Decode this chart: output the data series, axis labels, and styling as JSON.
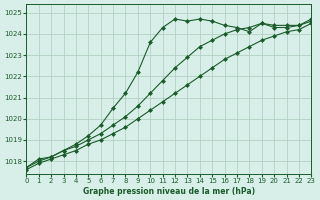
{
  "title": "Graphe pression niveau de la mer (hPa)",
  "background_color": "#d8eee8",
  "grid_color": "#aaccbb",
  "line_color": "#1a5c2a",
  "xlim": [
    0,
    23
  ],
  "ylim": [
    1017.4,
    1025.4
  ],
  "yticks": [
    1018,
    1019,
    1020,
    1021,
    1022,
    1023,
    1024,
    1025
  ],
  "xticks": [
    0,
    1,
    2,
    3,
    4,
    5,
    6,
    7,
    8,
    9,
    10,
    11,
    12,
    13,
    14,
    15,
    16,
    17,
    18,
    19,
    20,
    21,
    22,
    23
  ],
  "series": [
    {
      "x": [
        0,
        1,
        2,
        3,
        4,
        5,
        6,
        7,
        8,
        9,
        10,
        11,
        12,
        13,
        14,
        15,
        16,
        17,
        18,
        19,
        20,
        21,
        22,
        23
      ],
      "y": [
        1017.7,
        1018.1,
        1018.2,
        1018.5,
        1018.8,
        1019.2,
        1019.7,
        1020.5,
        1021.2,
        1022.2,
        1023.6,
        1024.3,
        1024.7,
        1024.6,
        1024.7,
        1024.6,
        1024.4,
        1024.3,
        1024.1,
        1024.5,
        1024.3,
        1024.3,
        1024.4,
        1024.7
      ],
      "marker": "D",
      "linewidth": 0.8,
      "markersize": 2.0,
      "linestyle": "-"
    },
    {
      "x": [
        0,
        1,
        2,
        3,
        4,
        5,
        6,
        7,
        8,
        9,
        10,
        11,
        12,
        13,
        14,
        15,
        16,
        17,
        18,
        19,
        20,
        21,
        22,
        23
      ],
      "y": [
        1017.7,
        1018.0,
        1018.2,
        1018.5,
        1018.7,
        1019.0,
        1019.3,
        1019.7,
        1020.1,
        1020.6,
        1021.2,
        1021.8,
        1022.4,
        1022.9,
        1023.4,
        1023.7,
        1024.0,
        1024.2,
        1024.3,
        1024.5,
        1024.4,
        1024.4,
        1024.4,
        1024.6
      ],
      "marker": "D",
      "linewidth": 0.8,
      "markersize": 2.0,
      "linestyle": "-"
    },
    {
      "x": [
        0,
        1,
        2,
        3,
        4,
        5,
        6,
        7,
        8,
        9,
        10,
        11,
        12,
        13,
        14,
        15,
        16,
        17,
        18,
        19,
        20,
        21,
        22,
        23
      ],
      "y": [
        1017.6,
        1017.9,
        1018.1,
        1018.3,
        1018.5,
        1018.8,
        1019.0,
        1019.3,
        1019.6,
        1020.0,
        1020.4,
        1020.8,
        1021.2,
        1021.6,
        1022.0,
        1022.4,
        1022.8,
        1023.1,
        1023.4,
        1023.7,
        1023.9,
        1024.1,
        1024.2,
        1024.5
      ],
      "marker": "D",
      "linewidth": 0.8,
      "markersize": 2.0,
      "linestyle": "-"
    }
  ]
}
